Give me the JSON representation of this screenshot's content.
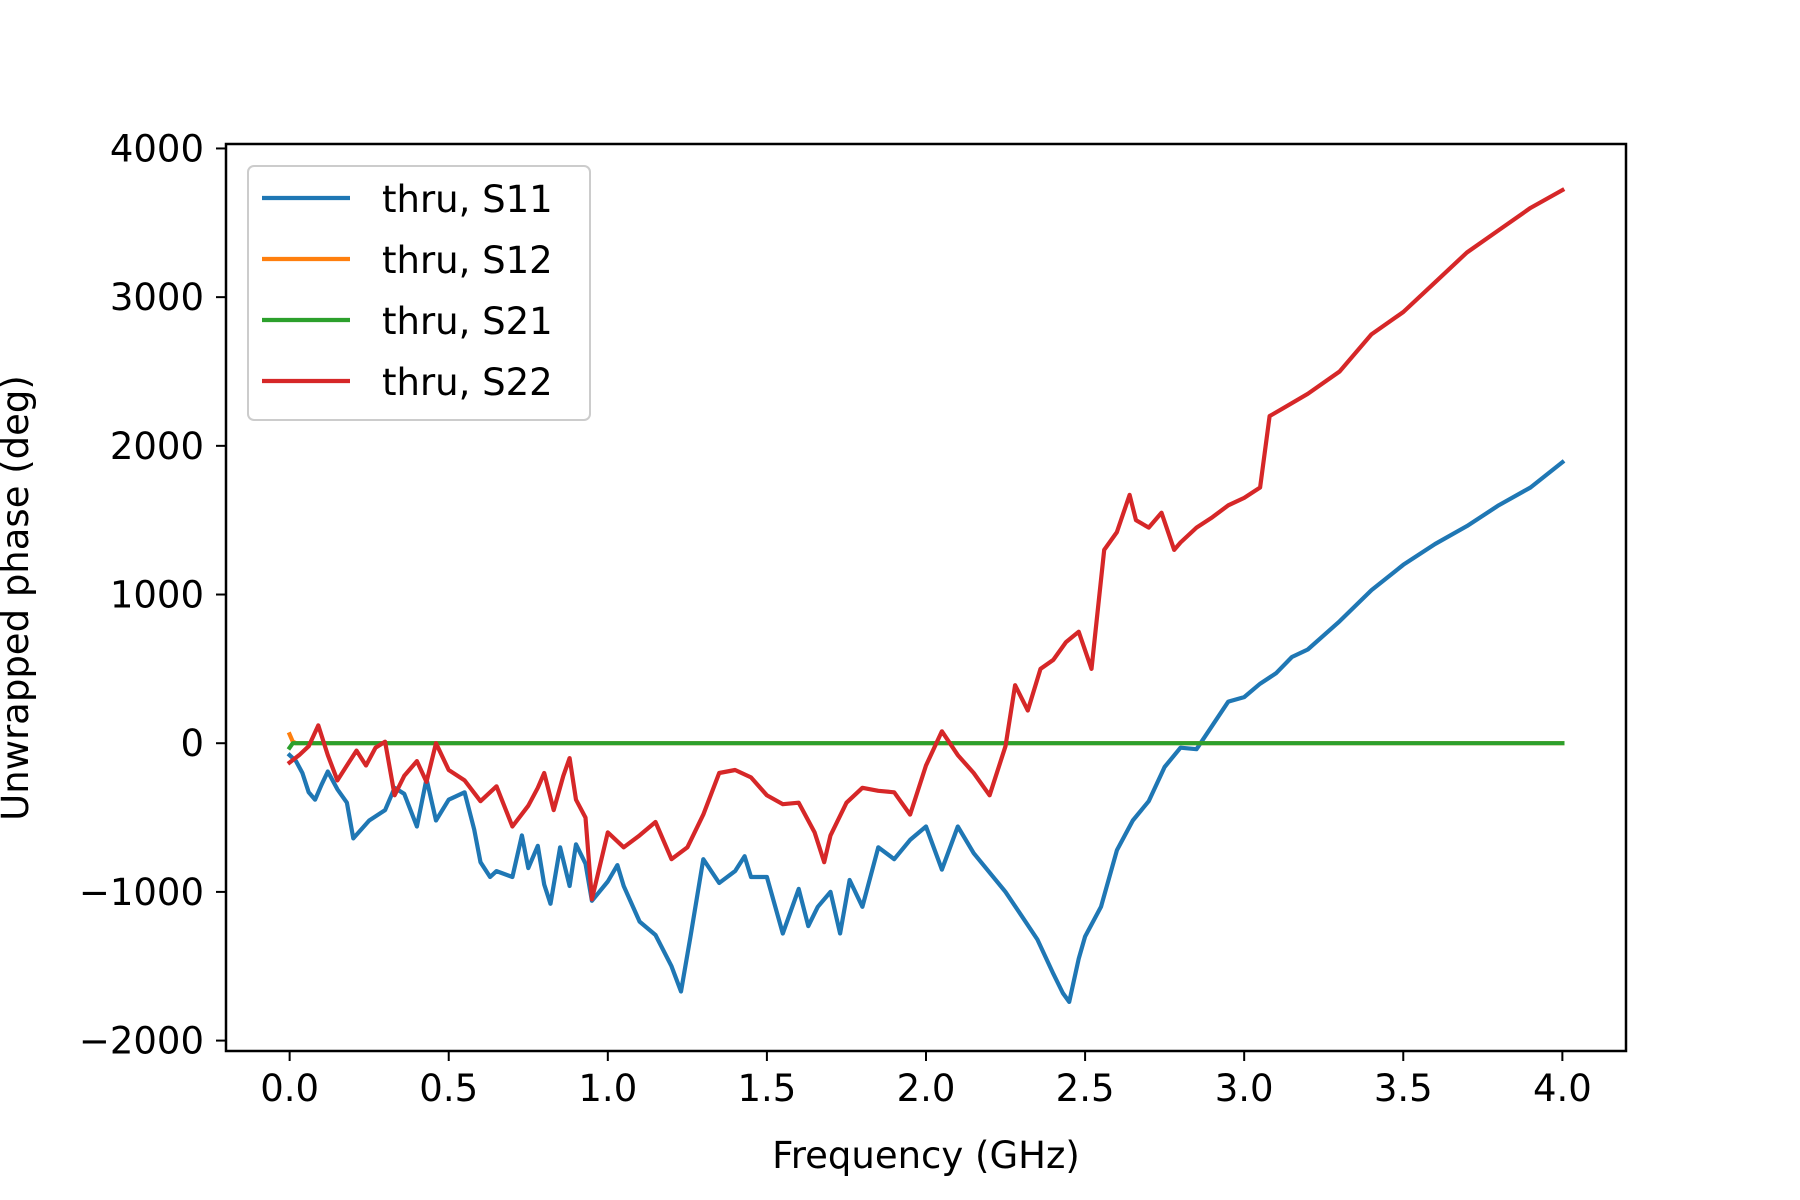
{
  "chart_data": {
    "type": "line",
    "title": "",
    "xlabel": "Frequency (GHz)",
    "ylabel": "Unwrapped phase (deg)",
    "xlim": [
      -0.2,
      4.2
    ],
    "ylim": [
      -2070,
      4030
    ],
    "xticks": [
      0.0,
      0.5,
      1.0,
      1.5,
      2.0,
      2.5,
      3.0,
      3.5,
      4.0
    ],
    "xtick_labels": [
      "0.0",
      "0.5",
      "1.0",
      "1.5",
      "2.0",
      "2.5",
      "3.0",
      "3.5",
      "4.0"
    ],
    "yticks": [
      -2000,
      -1000,
      0,
      1000,
      2000,
      3000,
      4000
    ],
    "ytick_labels": [
      "−2000",
      "−1000",
      "0",
      "1000",
      "2000",
      "3000",
      "4000"
    ],
    "grid": false,
    "legend_position": "top-left",
    "series": [
      {
        "name": "thru, S11",
        "color": "#1f77b4",
        "x": [
          0.0,
          0.02,
          0.04,
          0.06,
          0.08,
          0.1,
          0.12,
          0.15,
          0.18,
          0.2,
          0.25,
          0.3,
          0.33,
          0.36,
          0.4,
          0.43,
          0.46,
          0.5,
          0.55,
          0.58,
          0.6,
          0.63,
          0.65,
          0.7,
          0.73,
          0.75,
          0.78,
          0.8,
          0.82,
          0.85,
          0.88,
          0.9,
          0.93,
          0.95,
          1.0,
          1.03,
          1.05,
          1.1,
          1.15,
          1.2,
          1.23,
          1.26,
          1.3,
          1.35,
          1.4,
          1.43,
          1.45,
          1.5,
          1.55,
          1.6,
          1.63,
          1.66,
          1.7,
          1.73,
          1.76,
          1.8,
          1.85,
          1.9,
          1.95,
          2.0,
          2.05,
          2.1,
          2.15,
          2.2,
          2.25,
          2.3,
          2.35,
          2.4,
          2.43,
          2.45,
          2.48,
          2.5,
          2.55,
          2.6,
          2.65,
          2.7,
          2.75,
          2.8,
          2.85,
          2.9,
          2.95,
          3.0,
          3.05,
          3.1,
          3.15,
          3.2,
          3.3,
          3.4,
          3.5,
          3.6,
          3.7,
          3.8,
          3.9,
          4.0
        ],
        "y": [
          -80,
          -120,
          -200,
          -330,
          -380,
          -280,
          -190,
          -310,
          -400,
          -640,
          -520,
          -450,
          -300,
          -340,
          -560,
          -240,
          -520,
          -380,
          -330,
          -580,
          -800,
          -900,
          -860,
          -900,
          -620,
          -840,
          -690,
          -950,
          -1080,
          -700,
          -960,
          -680,
          -810,
          -1060,
          -930,
          -820,
          -960,
          -1200,
          -1290,
          -1500,
          -1670,
          -1300,
          -780,
          -940,
          -860,
          -760,
          -900,
          -900,
          -1280,
          -980,
          -1230,
          -1100,
          -1000,
          -1280,
          -920,
          -1100,
          -700,
          -780,
          -650,
          -560,
          -850,
          -560,
          -740,
          -870,
          -1000,
          -1160,
          -1320,
          -1550,
          -1680,
          -1740,
          -1450,
          -1300,
          -1100,
          -720,
          -520,
          -390,
          -160,
          -30,
          -40,
          120,
          280,
          310,
          400,
          470,
          580,
          630,
          820,
          1030,
          1200,
          1340,
          1460,
          1600,
          1720,
          1890
        ]
      },
      {
        "name": "thru, S12",
        "color": "#ff7f0e",
        "x": [
          0.0,
          0.01,
          0.02,
          0.5,
          1.0,
          1.5,
          2.0,
          2.5,
          3.0,
          3.5,
          4.0
        ],
        "y": [
          60,
          10,
          0,
          0,
          0,
          0,
          0,
          0,
          0,
          0,
          0
        ]
      },
      {
        "name": "thru, S21",
        "color": "#2ca02c",
        "x": [
          0.0,
          0.01,
          0.5,
          1.0,
          1.5,
          2.0,
          2.5,
          3.0,
          3.5,
          4.0
        ],
        "y": [
          -30,
          0,
          0,
          0,
          0,
          0,
          0,
          0,
          0,
          0
        ]
      },
      {
        "name": "thru, S22",
        "color": "#d62728",
        "x": [
          0.0,
          0.03,
          0.06,
          0.09,
          0.12,
          0.15,
          0.18,
          0.21,
          0.24,
          0.27,
          0.3,
          0.33,
          0.36,
          0.4,
          0.43,
          0.46,
          0.5,
          0.55,
          0.6,
          0.65,
          0.7,
          0.75,
          0.78,
          0.8,
          0.83,
          0.86,
          0.88,
          0.9,
          0.93,
          0.95,
          1.0,
          1.05,
          1.1,
          1.15,
          1.2,
          1.25,
          1.3,
          1.35,
          1.4,
          1.45,
          1.5,
          1.55,
          1.6,
          1.65,
          1.68,
          1.7,
          1.75,
          1.8,
          1.85,
          1.9,
          1.95,
          2.0,
          2.05,
          2.1,
          2.15,
          2.2,
          2.25,
          2.28,
          2.32,
          2.36,
          2.4,
          2.44,
          2.48,
          2.52,
          2.56,
          2.6,
          2.64,
          2.66,
          2.7,
          2.74,
          2.78,
          2.8,
          2.85,
          2.9,
          2.95,
          3.0,
          3.05,
          3.08,
          3.12,
          3.2,
          3.3,
          3.4,
          3.5,
          3.6,
          3.7,
          3.8,
          3.9,
          4.0
        ],
        "y": [
          -130,
          -80,
          -20,
          120,
          -80,
          -250,
          -150,
          -50,
          -150,
          -30,
          10,
          -350,
          -220,
          -120,
          -260,
          0,
          -180,
          -250,
          -390,
          -290,
          -560,
          -420,
          -300,
          -200,
          -450,
          -220,
          -100,
          -380,
          -500,
          -1050,
          -600,
          -700,
          -620,
          -530,
          -780,
          -700,
          -480,
          -200,
          -180,
          -230,
          -350,
          -410,
          -400,
          -600,
          -800,
          -620,
          -400,
          -300,
          -320,
          -330,
          -480,
          -150,
          80,
          -80,
          -200,
          -350,
          -20,
          390,
          220,
          500,
          560,
          680,
          750,
          500,
          1300,
          1420,
          1670,
          1500,
          1450,
          1550,
          1300,
          1350,
          1450,
          1520,
          1600,
          1650,
          1720,
          2200,
          2250,
          2350,
          2500,
          2750,
          2900,
          3100,
          3300,
          3450,
          3600,
          3720
        ]
      }
    ]
  }
}
